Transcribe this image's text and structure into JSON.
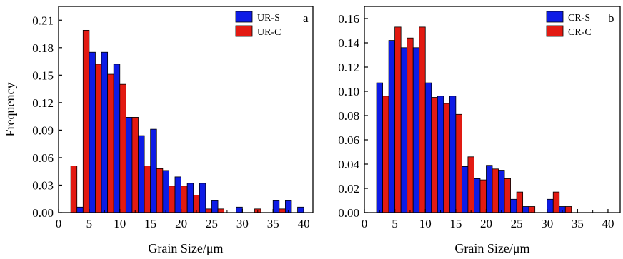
{
  "colors": {
    "series_s": "#0d1be6",
    "series_c": "#e31a12"
  },
  "chart_data": [
    {
      "type": "bar",
      "panel_label": "a",
      "xlabel": "Grain Size/μm",
      "ylabel": "Frequency",
      "xlim": [
        0,
        41.5
      ],
      "ylim": [
        0,
        0.225
      ],
      "xticks": [
        0,
        5,
        10,
        15,
        20,
        25,
        30,
        35,
        40
      ],
      "xtick_labels": [
        "0",
        "5",
        "10",
        "15",
        "20",
        "25",
        "30",
        "35",
        "40"
      ],
      "yticks": [
        0,
        0.03,
        0.06,
        0.09,
        0.12,
        0.15,
        0.18,
        0.21
      ],
      "ytick_labels": [
        "0.00",
        "0.03",
        "0.06",
        "0.09",
        "0.12",
        "0.15",
        "0.18",
        "0.21"
      ],
      "bin_centers": [
        2,
        4,
        6,
        8,
        10,
        12,
        14,
        16,
        18,
        20,
        22,
        24,
        26,
        28,
        30,
        32,
        34,
        36,
        38,
        40
      ],
      "legend_position": "top-right",
      "series": [
        {
          "name": "UR-S",
          "color": "#0d1be6",
          "values": [
            0.0,
            0.006,
            0.175,
            0.175,
            0.162,
            0.104,
            0.084,
            0.091,
            0.046,
            0.039,
            0.032,
            0.032,
            0.013,
            0.0,
            0.006,
            0.0,
            0.0,
            0.013,
            0.013,
            0.006
          ]
        },
        {
          "name": "UR-C",
          "color": "#e31a12",
          "values": [
            0.051,
            0.199,
            0.162,
            0.151,
            0.14,
            0.104,
            0.051,
            0.048,
            0.029,
            0.029,
            0.019,
            0.004,
            0.004,
            0.0,
            0.0,
            0.004,
            0.0,
            0.004,
            0.0,
            0.0
          ]
        }
      ]
    },
    {
      "type": "bar",
      "panel_label": "b",
      "xlabel": "Grain Size/μm",
      "ylabel": "",
      "xlim": [
        0,
        42
      ],
      "ylim": [
        0,
        0.17
      ],
      "xticks": [
        0,
        5,
        10,
        15,
        20,
        25,
        30,
        35,
        40
      ],
      "xtick_labels": [
        "0",
        "5",
        "10",
        "15",
        "20",
        "25",
        "30",
        "35",
        "40"
      ],
      "yticks": [
        0,
        0.02,
        0.04,
        0.06,
        0.08,
        0.1,
        0.12,
        0.14,
        0.16
      ],
      "ytick_labels": [
        "0.00",
        "0.02",
        "0.04",
        "0.06",
        "0.08",
        "0.10",
        "0.12",
        "0.14",
        "0.16"
      ],
      "bin_centers": [
        3,
        5,
        7,
        9,
        11,
        13,
        15,
        17,
        19,
        21,
        23,
        25,
        27,
        29,
        31,
        33
      ],
      "legend_position": "top-right",
      "series": [
        {
          "name": "CR-S",
          "color": "#0d1be6",
          "values": [
            0.107,
            0.142,
            0.136,
            0.136,
            0.107,
            0.096,
            0.096,
            0.038,
            0.028,
            0.039,
            0.035,
            0.011,
            0.005,
            0.0,
            0.011,
            0.005
          ]
        },
        {
          "name": "CR-C",
          "color": "#e31a12",
          "values": [
            0.096,
            0.153,
            0.144,
            0.153,
            0.095,
            0.09,
            0.081,
            0.046,
            0.027,
            0.036,
            0.028,
            0.017,
            0.005,
            0.0,
            0.017,
            0.005
          ]
        }
      ]
    }
  ]
}
